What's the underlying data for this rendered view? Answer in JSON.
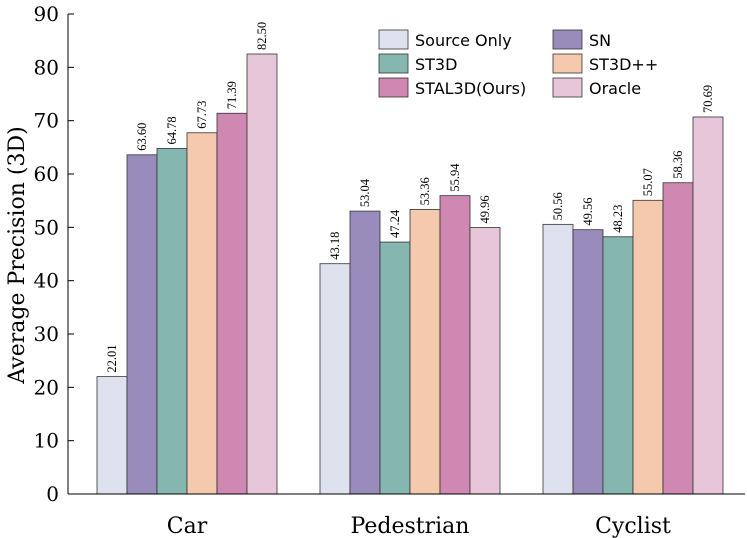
{
  "chart_data": {
    "type": "bar",
    "title": "",
    "xlabel": "",
    "ylabel": "Average Precision (3D)",
    "ylim": [
      0,
      90
    ],
    "yticks": [
      0,
      10,
      20,
      30,
      40,
      50,
      60,
      70,
      80,
      90
    ],
    "categories": [
      "Car",
      "Pedestrian",
      "Cyclist"
    ],
    "series": [
      {
        "name": "Source Only",
        "color": "#dde2ee",
        "values": [
          22.01,
          43.18,
          50.56
        ],
        "labels": [
          "22.01",
          "43.18",
          "50.56"
        ]
      },
      {
        "name": "SN",
        "color": "#998bbc",
        "values": [
          63.6,
          53.04,
          49.56
        ],
        "labels": [
          "63.60",
          "53.04",
          "49.56"
        ]
      },
      {
        "name": "ST3D",
        "color": "#85b6b0",
        "values": [
          64.78,
          47.24,
          48.23
        ],
        "labels": [
          "64.78",
          "47.24",
          "48.23"
        ]
      },
      {
        "name": "ST3D++",
        "color": "#f4c9ad",
        "values": [
          67.73,
          53.36,
          55.07
        ],
        "labels": [
          "67.73",
          "53.36",
          "55.07"
        ]
      },
      {
        "name": "STAL3D(Ours)",
        "color": "#cf88b2",
        "values": [
          71.39,
          55.94,
          58.36
        ],
        "labels": [
          "71.39",
          "55.94",
          "58.36"
        ]
      },
      {
        "name": "Oracle",
        "color": "#e7c6da",
        "values": [
          82.5,
          49.96,
          70.69
        ],
        "labels": [
          "82.50",
          "49.96",
          "70.69"
        ]
      }
    ],
    "legend": {
      "placement": "top-right",
      "columns": 2
    },
    "grid": false
  }
}
